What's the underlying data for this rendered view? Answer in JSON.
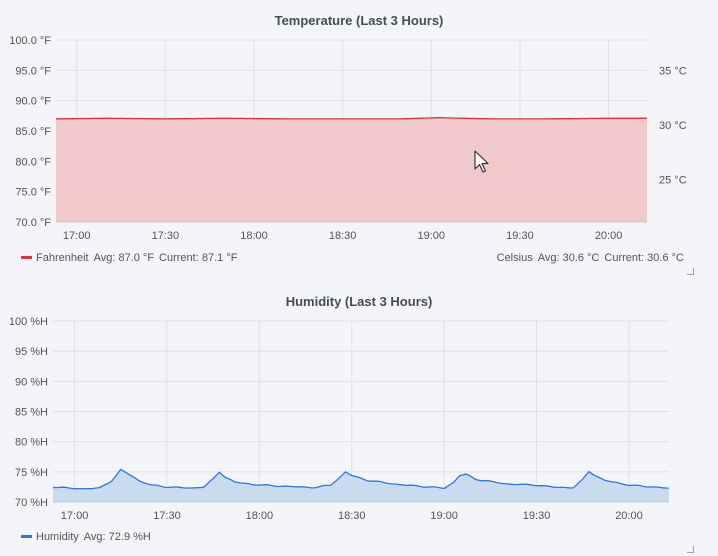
{
  "chart_data": [
    {
      "type": "area",
      "title": "Temperature (Last 3 Hours)",
      "x_ticks": [
        "17:00",
        "17:30",
        "18:00",
        "18:30",
        "19:00",
        "19:30",
        "20:00"
      ],
      "y_ticks": [
        "70.0 °F",
        "75.0 °F",
        "80.0 °F",
        "85.0 °F",
        "90.0 °F",
        "95.0 °F",
        "100.0 °F"
      ],
      "ylim": [
        70,
        100
      ],
      "y2_ticks": [
        "25 °C",
        "30 °C",
        "35 °C"
      ],
      "y2lim": [
        21.11,
        37.78
      ],
      "xlim": [
        "16:53",
        "20:13"
      ],
      "grid": true,
      "series": [
        {
          "name": "Fahrenheit",
          "color": "#e02f44",
          "fill": "#f2c9ca",
          "x": [
            "16:53",
            "17:10",
            "17:30",
            "17:50",
            "18:10",
            "18:30",
            "18:50",
            "19:02",
            "19:20",
            "19:40",
            "20:00",
            "20:13"
          ],
          "values": [
            87.0,
            87.1,
            87.0,
            87.1,
            87.0,
            87.0,
            87.0,
            87.2,
            87.0,
            87.0,
            87.1,
            87.1
          ]
        },
        {
          "name": "Celsius",
          "color": "#e02f44",
          "x": [
            "16:53",
            "20:13"
          ],
          "values": [
            30.6,
            30.6
          ]
        }
      ],
      "legend": {
        "left": {
          "name": "Fahrenheit",
          "avg": "Avg: 87.0 °F",
          "current": "Current: 87.1 °F"
        },
        "right": {
          "name": "Celsius",
          "avg": "Avg: 30.6 °C",
          "current": "Current: 30.6 °C"
        }
      },
      "legend_position": "bottom"
    },
    {
      "type": "area",
      "title": "Humidity (Last 3 Hours)",
      "x_ticks": [
        "17:00",
        "17:30",
        "18:00",
        "18:30",
        "19:00",
        "19:30",
        "20:00"
      ],
      "y_ticks": [
        "70 %H",
        "75 %H",
        "80 %H",
        "85 %H",
        "90 %H",
        "95 %H",
        "100 %H"
      ],
      "ylim": [
        70,
        100
      ],
      "xlim": [
        "16:53",
        "20:13"
      ],
      "grid": true,
      "series": [
        {
          "name": "Humidity",
          "color": "#3274d9",
          "fill": "#c9dbef",
          "x": [
            "16:53",
            "16:58",
            "17:03",
            "17:08",
            "17:12",
            "17:15",
            "17:17",
            "17:19",
            "17:21",
            "17:25",
            "17:30",
            "17:38",
            "17:42",
            "17:45",
            "17:47",
            "17:49",
            "17:52",
            "17:58",
            "18:08",
            "18:18",
            "18:23",
            "18:26",
            "18:28",
            "18:30",
            "18:35",
            "18:45",
            "18:55",
            "19:00",
            "19:03",
            "19:05",
            "19:07",
            "19:10",
            "19:20",
            "19:30",
            "19:37",
            "19:42",
            "19:45",
            "19:47",
            "19:49",
            "19:52",
            "20:00",
            "20:05",
            "20:13"
          ],
          "values": [
            72.5,
            72.3,
            72.2,
            72.3,
            73.5,
            75.3,
            74.8,
            74.2,
            73.5,
            72.8,
            72.5,
            72.3,
            72.5,
            73.8,
            75.0,
            74.1,
            73.3,
            72.9,
            72.6,
            72.4,
            72.8,
            74.0,
            75.0,
            74.4,
            73.6,
            72.9,
            72.5,
            72.3,
            73.2,
            74.4,
            74.6,
            73.8,
            73.0,
            72.8,
            72.4,
            72.4,
            73.7,
            75.1,
            74.4,
            73.6,
            72.8,
            72.6,
            72.3
          ]
        }
      ],
      "legend": {
        "left": {
          "name": "Humidity",
          "avg": "Avg: 72.9 %H"
        }
      },
      "legend_position": "bottom"
    }
  ]
}
